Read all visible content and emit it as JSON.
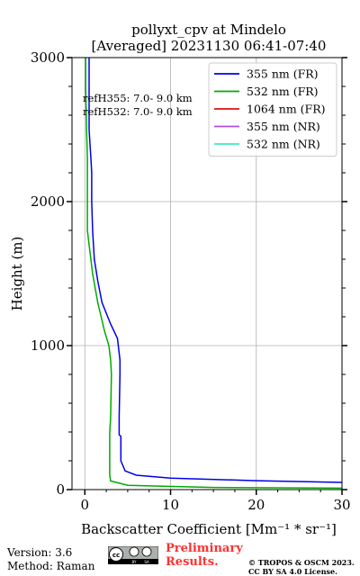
{
  "chart_data": {
    "type": "line",
    "title_lines": [
      "pollyxt_cpv at Mindelo",
      "[Averaged] 20231130 06:41-07:40"
    ],
    "xlabel": "Backscatter Coefficient [Mm⁻¹ * sr⁻¹]",
    "ylabel": "Height (m)",
    "xlim": [
      -1.5,
      30
    ],
    "ylim": [
      0,
      3000
    ],
    "x_ticks": [
      0,
      10,
      20,
      30
    ],
    "y_ticks": [
      0,
      1000,
      2000,
      3000
    ],
    "grid": true,
    "legend_position": "top-right",
    "annotations": [
      "refH355:  7.0- 9.0 km",
      "refH532:  7.0- 9.0 km"
    ],
    "series": [
      {
        "name": "355 nm (FR)",
        "color": "#0000ee",
        "points": [
          [
            30,
            50
          ],
          [
            20,
            62
          ],
          [
            10,
            80
          ],
          [
            6,
            100
          ],
          [
            4.7,
            130
          ],
          [
            4.2,
            200
          ],
          [
            4.2,
            370
          ],
          [
            4.0,
            380
          ],
          [
            4.0,
            500
          ],
          [
            4.1,
            800
          ],
          [
            4.1,
            900
          ],
          [
            3.8,
            1050
          ],
          [
            3.0,
            1150
          ],
          [
            2.0,
            1300
          ],
          [
            1.5,
            1450
          ],
          [
            1.1,
            1600
          ],
          [
            0.9,
            1800
          ],
          [
            0.8,
            2000
          ],
          [
            0.8,
            2200
          ],
          [
            0.7,
            2300
          ],
          [
            0.5,
            2500
          ],
          [
            0.5,
            2700
          ],
          [
            0.5,
            2900
          ],
          [
            0.5,
            3000
          ]
        ]
      },
      {
        "name": "532 nm (FR)",
        "color": "#00aa00",
        "points": [
          [
            30,
            10
          ],
          [
            15,
            15
          ],
          [
            5,
            30
          ],
          [
            3,
            60
          ],
          [
            2.9,
            100
          ],
          [
            2.9,
            200
          ],
          [
            2.9,
            370
          ],
          [
            2.9,
            390
          ],
          [
            3.0,
            500
          ],
          [
            3.1,
            800
          ],
          [
            3.0,
            900
          ],
          [
            2.8,
            1000
          ],
          [
            2.3,
            1100
          ],
          [
            1.5,
            1300
          ],
          [
            0.9,
            1500
          ],
          [
            0.5,
            1700
          ],
          [
            0.3,
            1800
          ],
          [
            0.3,
            2000
          ],
          [
            0.3,
            2300
          ],
          [
            0.2,
            2500
          ],
          [
            0.1,
            2800
          ],
          [
            0.1,
            3000
          ]
        ]
      },
      {
        "name": "1064 nm (FR)",
        "color": "#dd1111",
        "points": []
      },
      {
        "name": "355 nm (NR)",
        "color": "#b050e0",
        "points": []
      },
      {
        "name": "532 nm (NR)",
        "color": "#40e8c0",
        "points": []
      }
    ]
  },
  "footer": {
    "version": "Version: 3.6",
    "method": "Method: Raman",
    "preliminary_line1": "Preliminary",
    "preliminary_line2": "Results.",
    "copyright_line1": "© TROPOS & OSCM 2023.",
    "copyright_line2": "CC BY SA 4.0 License."
  }
}
